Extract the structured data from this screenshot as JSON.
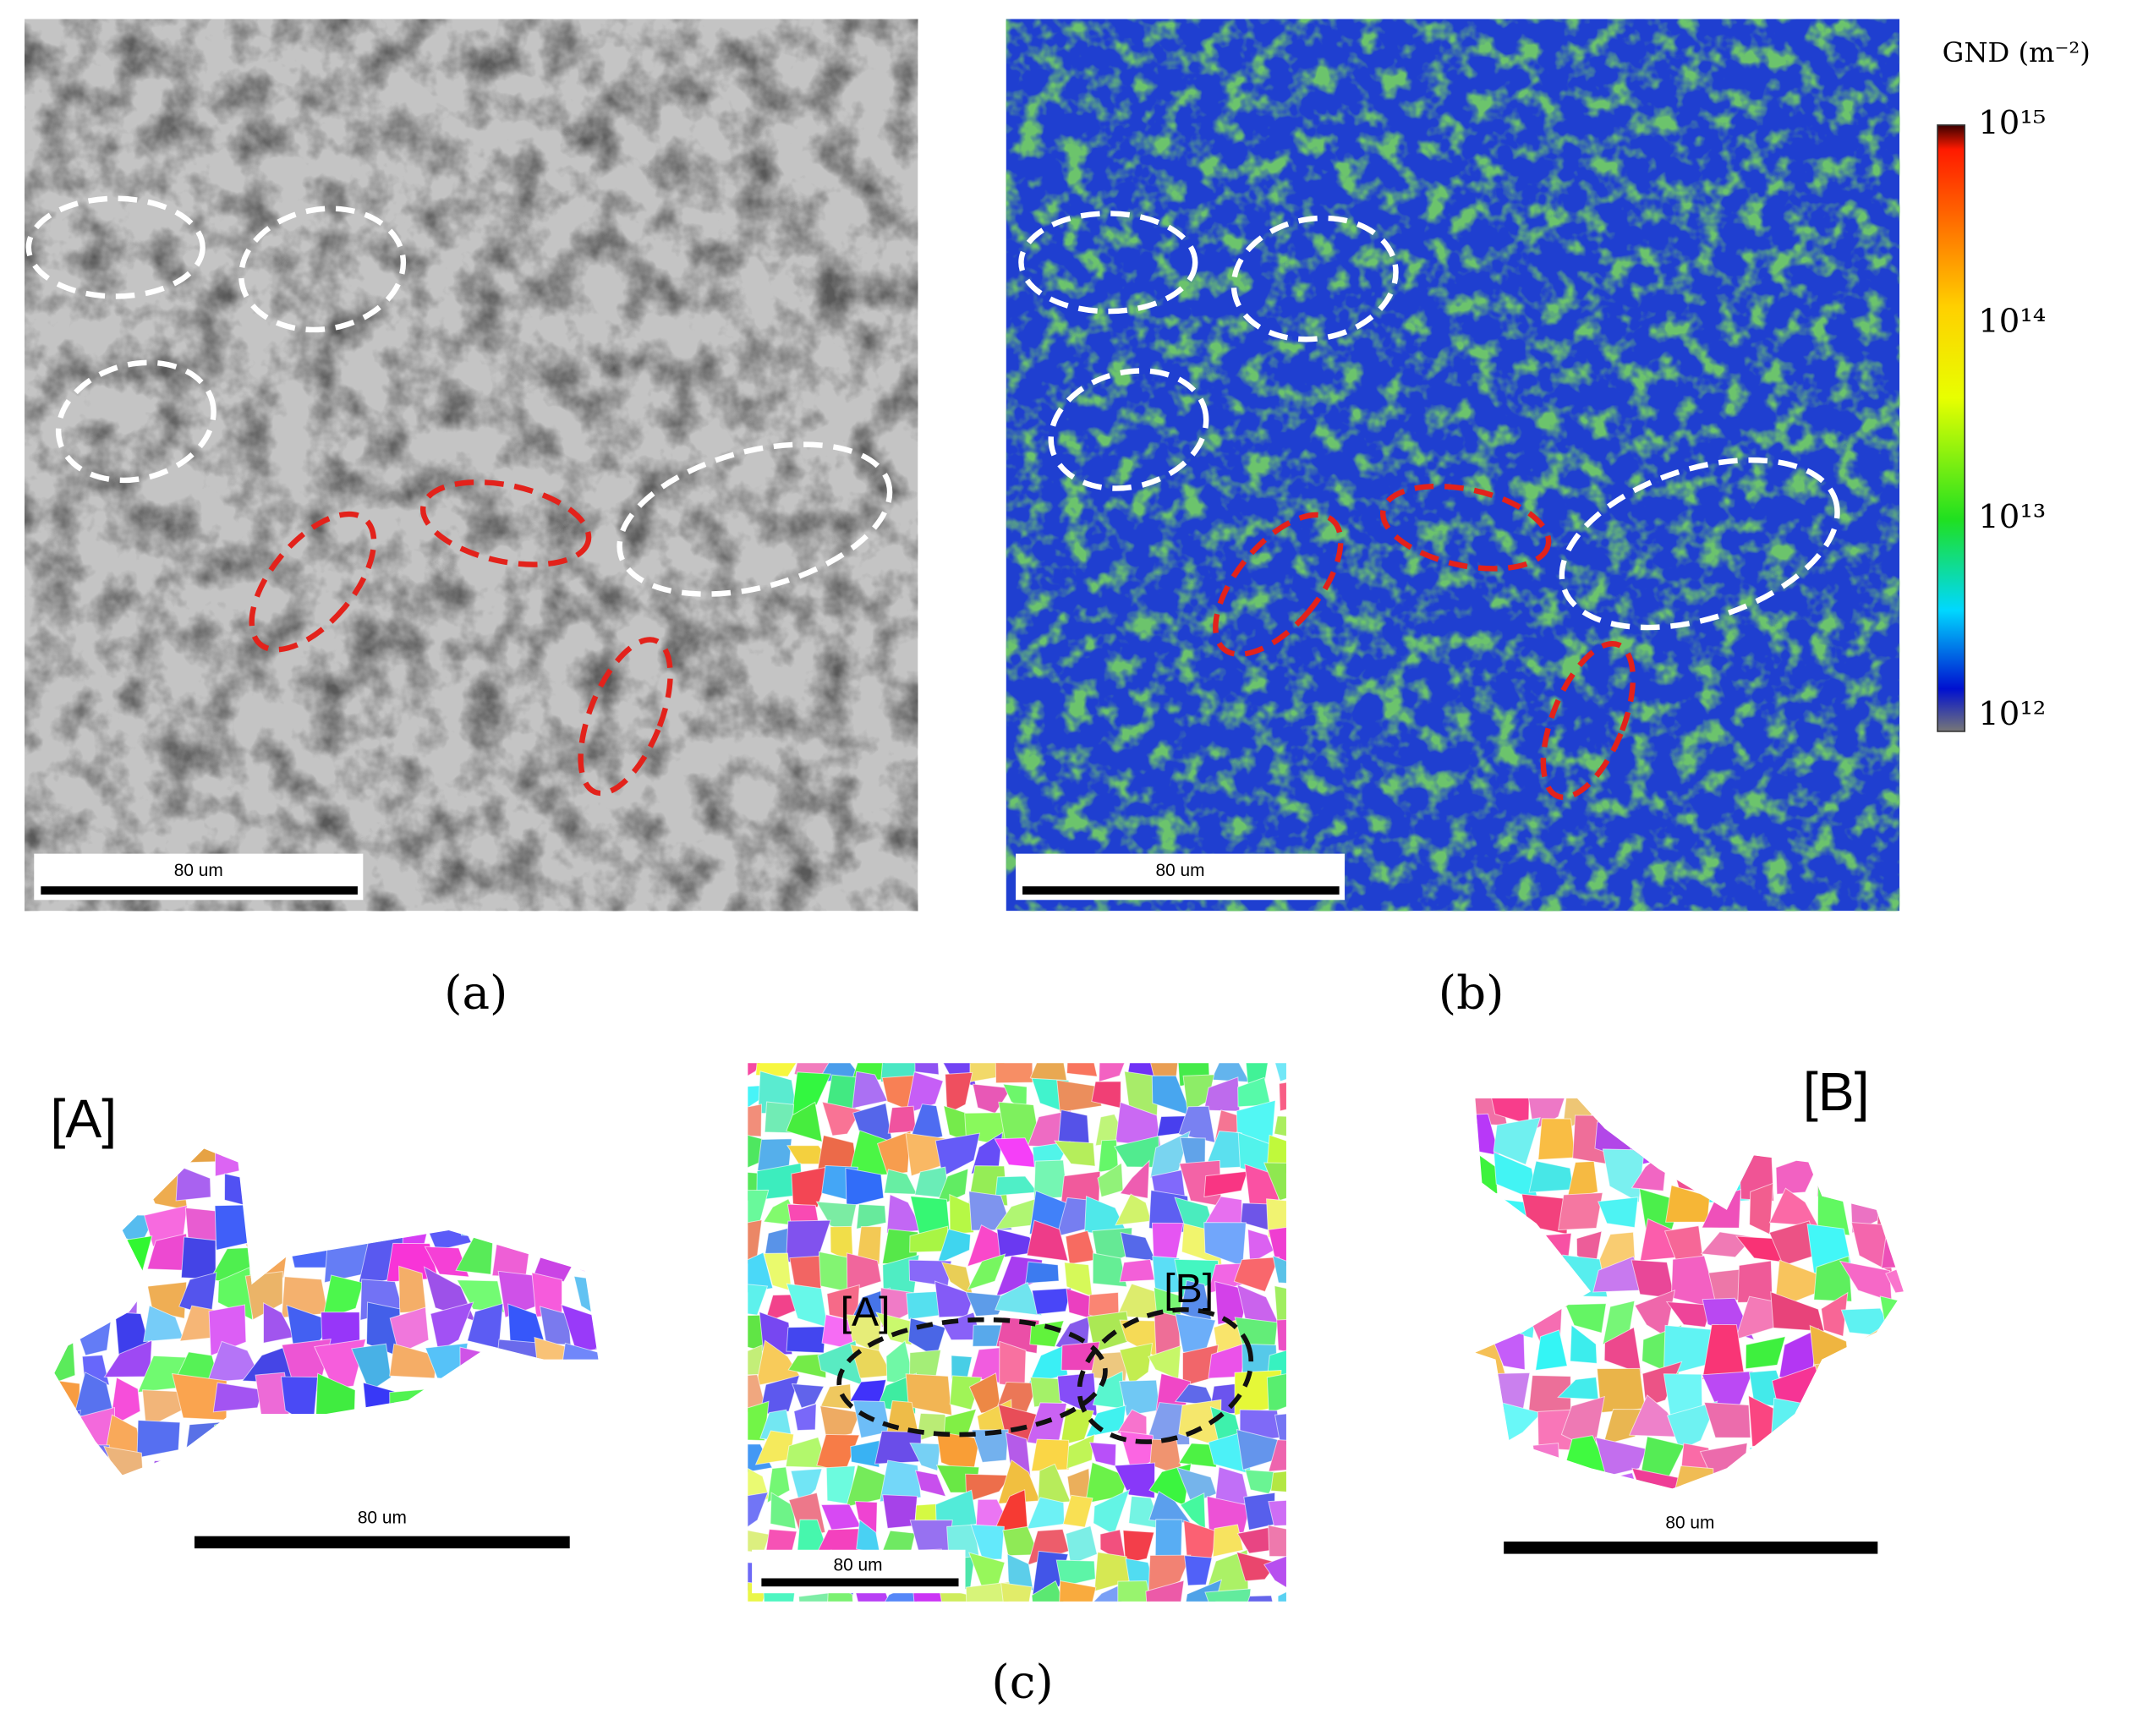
{
  "panels": {
    "a": {
      "label": "(a)",
      "scale_bar": "80 um"
    },
    "b": {
      "label": "(b)",
      "scale_bar": "80 um",
      "colorbar": {
        "title": "GND (m⁻²)",
        "ticks": [
          "10¹⁵",
          "10¹⁴",
          "10¹³",
          "10¹²"
        ]
      }
    },
    "c": {
      "label": "(c)",
      "scale_bar": "80 um",
      "regions": [
        "[A]",
        "[B]"
      ],
      "inset_A": {
        "label": "[A]",
        "scale_bar": "80 um"
      },
      "inset_B": {
        "label": "[B]",
        "scale_bar": "80 um"
      }
    }
  }
}
